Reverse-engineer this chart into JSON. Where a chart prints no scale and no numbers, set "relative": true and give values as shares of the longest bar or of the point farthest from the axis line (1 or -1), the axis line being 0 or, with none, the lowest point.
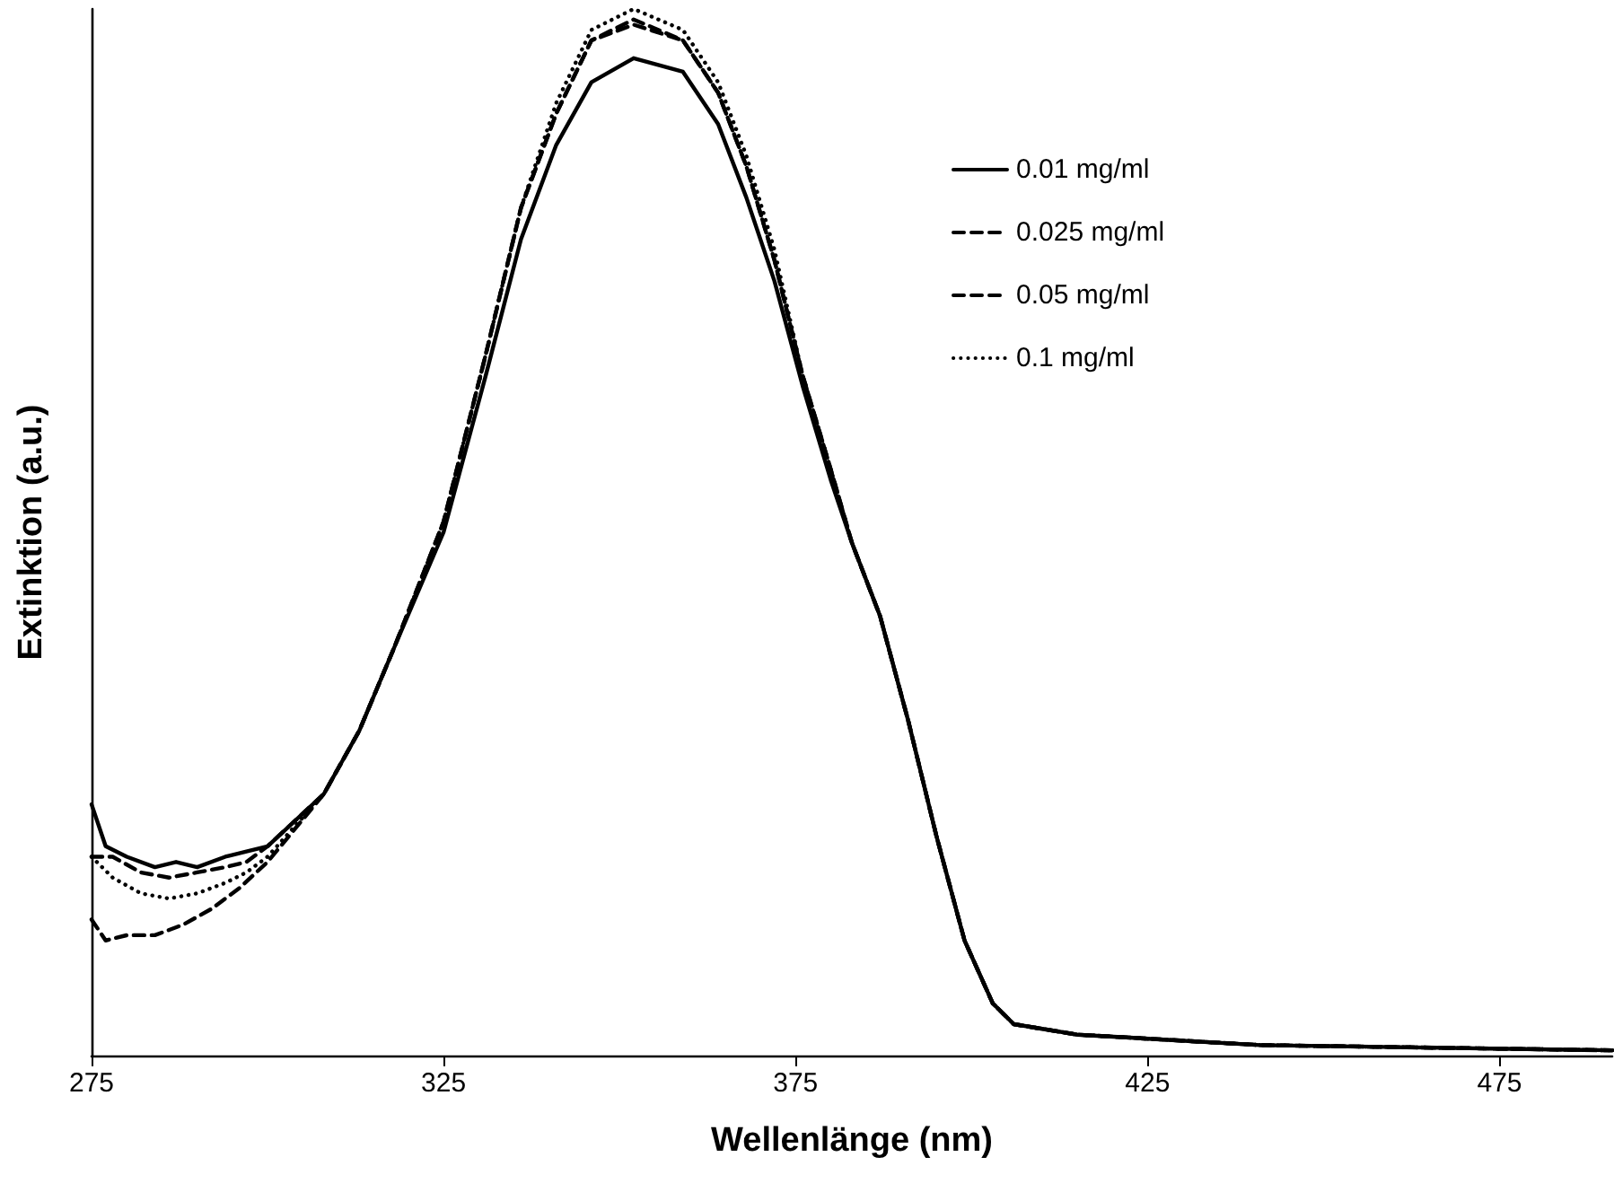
{
  "chart_data": {
    "type": "line",
    "xlabel": "Wellenlänge (nm)",
    "ylabel": "Extinktion (a.u.)",
    "relative": true,
    "xlim": [
      275,
      491
    ],
    "xticks": [
      275,
      325,
      375,
      425,
      475
    ],
    "grid": false,
    "legend": "top right",
    "marker": "none",
    "series": [
      {
        "name": "0.01 mg/ml",
        "color": "#000000",
        "line_style": "solid",
        "x": [
          275,
          277,
          280,
          284,
          287,
          290,
          294,
          297,
          300,
          308,
          313,
          318,
          325,
          331,
          336,
          341,
          346,
          352,
          359,
          364,
          368,
          372,
          376,
          380,
          383,
          387,
          391,
          395,
          399,
          403,
          406,
          415,
          441,
          491
        ],
        "values": [
          0.24,
          0.2,
          0.19,
          0.18,
          0.185,
          0.18,
          0.19,
          0.195,
          0.2,
          0.25,
          0.31,
          0.39,
          0.5,
          0.65,
          0.78,
          0.87,
          0.93,
          0.953,
          0.94,
          0.89,
          0.82,
          0.74,
          0.64,
          0.55,
          0.49,
          0.42,
          0.32,
          0.21,
          0.11,
          0.05,
          0.03,
          0.02,
          0.01,
          0.005
        ]
      },
      {
        "name": "0.025 mg/ml",
        "color": "#000000",
        "line_style": "dashed",
        "x": [
          275,
          277,
          280,
          284,
          288,
          292,
          296,
          300,
          308,
          313,
          318,
          325,
          331,
          336,
          341,
          346,
          352,
          359,
          364,
          368,
          372,
          376,
          380,
          383,
          387,
          391,
          395,
          399,
          403,
          406,
          415,
          441,
          491
        ],
        "values": [
          0.13,
          0.11,
          0.115,
          0.115,
          0.125,
          0.14,
          0.16,
          0.185,
          0.25,
          0.31,
          0.39,
          0.51,
          0.67,
          0.81,
          0.9,
          0.97,
          0.99,
          0.97,
          0.92,
          0.85,
          0.76,
          0.65,
          0.56,
          0.49,
          0.42,
          0.32,
          0.21,
          0.11,
          0.05,
          0.03,
          0.02,
          0.01,
          0.005
        ]
      },
      {
        "name": "0.05 mg/ml",
        "color": "#000000",
        "line_style": "dashed",
        "x": [
          275,
          278,
          282,
          286,
          290,
          294,
          297,
          300,
          308,
          313,
          318,
          325,
          331,
          336,
          341,
          346,
          352,
          359,
          364,
          368,
          372,
          376,
          380,
          383,
          387,
          391,
          395,
          399,
          403,
          406,
          415,
          441,
          491
        ],
        "values": [
          0.19,
          0.19,
          0.175,
          0.17,
          0.175,
          0.18,
          0.185,
          0.2,
          0.25,
          0.31,
          0.39,
          0.51,
          0.67,
          0.81,
          0.9,
          0.97,
          0.985,
          0.97,
          0.92,
          0.85,
          0.76,
          0.65,
          0.56,
          0.49,
          0.42,
          0.32,
          0.21,
          0.11,
          0.05,
          0.03,
          0.02,
          0.01,
          0.005
        ]
      },
      {
        "name": "0.1 mg/ml",
        "color": "#000000",
        "line_style": "dotted",
        "x": [
          275,
          278,
          282,
          286,
          290,
          294,
          297,
          300,
          308,
          313,
          318,
          325,
          331,
          336,
          341,
          346,
          352,
          359,
          364,
          368,
          372,
          376,
          380,
          383,
          387,
          391,
          395,
          399,
          403,
          406,
          415,
          441,
          491
        ],
        "values": [
          0.19,
          0.17,
          0.155,
          0.15,
          0.155,
          0.165,
          0.175,
          0.19,
          0.25,
          0.31,
          0.39,
          0.51,
          0.67,
          0.81,
          0.91,
          0.98,
          1.0,
          0.98,
          0.93,
          0.86,
          0.77,
          0.65,
          0.56,
          0.49,
          0.42,
          0.32,
          0.21,
          0.11,
          0.05,
          0.03,
          0.02,
          0.01,
          0.005
        ]
      }
    ]
  }
}
